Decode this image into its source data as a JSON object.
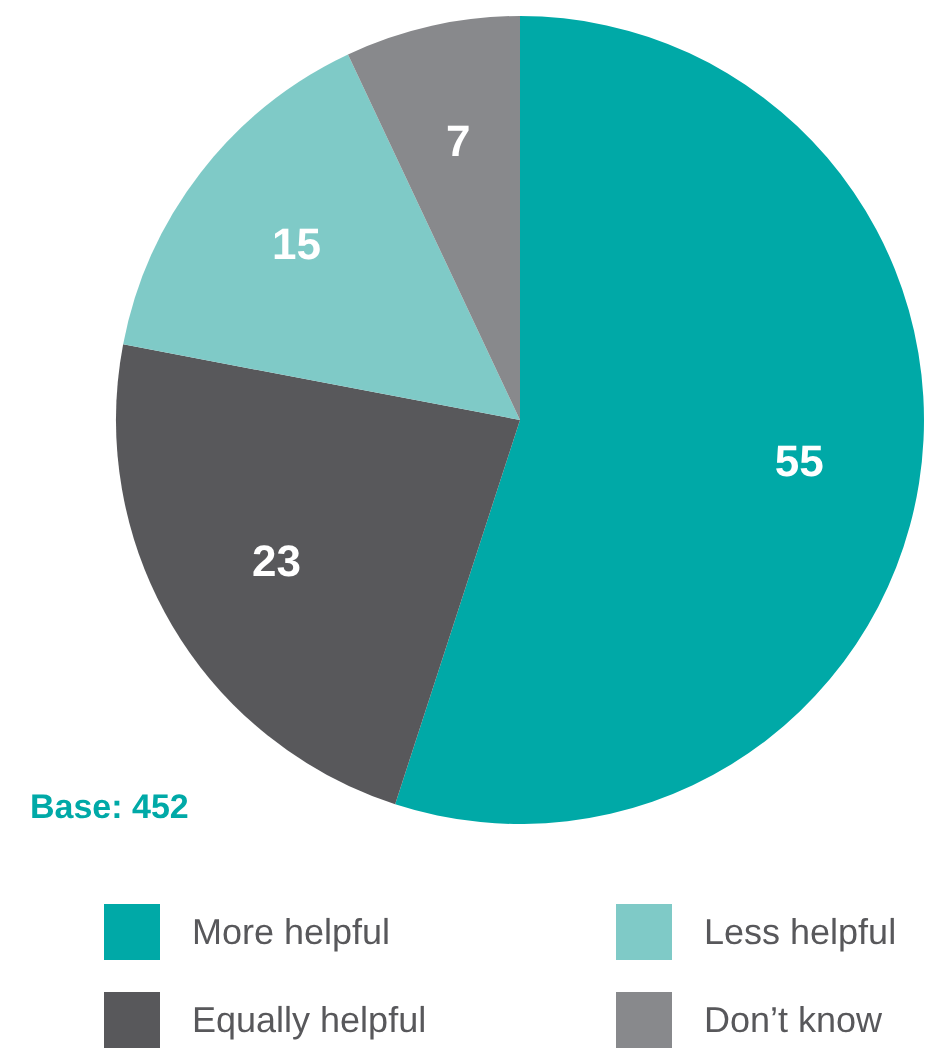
{
  "chart_data": {
    "type": "pie",
    "categories": [
      "More helpful",
      "Equally helpful",
      "Less helpful",
      "Don’t know"
    ],
    "values": [
      55,
      23,
      15,
      7
    ],
    "colors": [
      "#00a9a7",
      "#58585b",
      "#7fcac7",
      "#88898c"
    ],
    "data_labels": true,
    "legend": "bottom",
    "annotations": [
      "Base: 452"
    ]
  }
}
